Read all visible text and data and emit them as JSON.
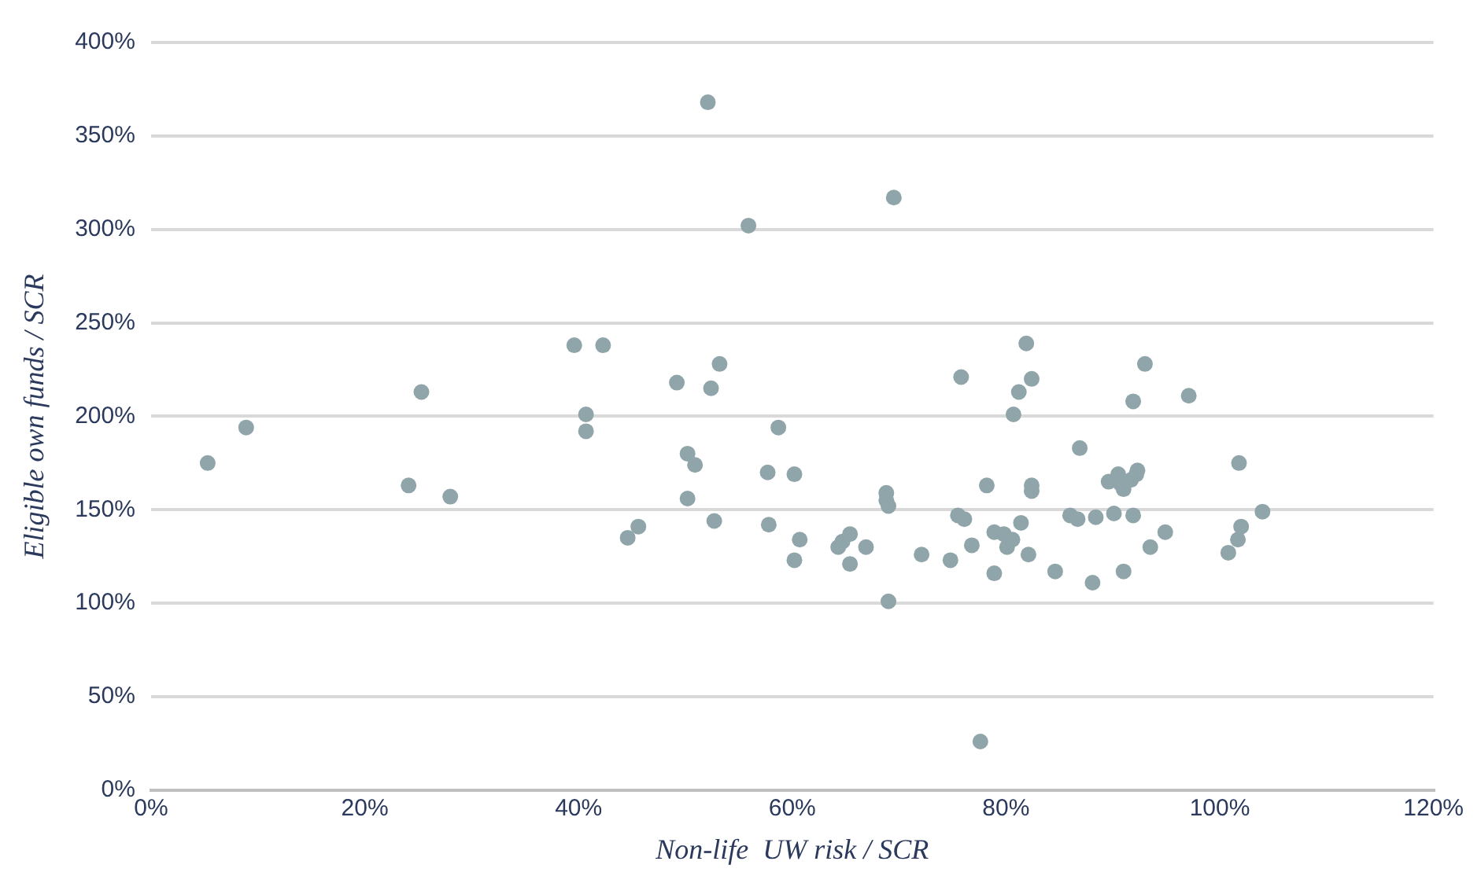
{
  "chart_data": {
    "type": "scatter",
    "xlabel": "Non-life  UW risk / SCR",
    "ylabel": "Eligible own funds / SCR",
    "xlim": [
      0,
      120
    ],
    "xticks": [
      {
        "value": 0,
        "label": "0%"
      },
      {
        "value": 20,
        "label": "20%"
      },
      {
        "value": 40,
        "label": "40%"
      },
      {
        "value": 60,
        "label": "60%"
      },
      {
        "value": 80,
        "label": "80%"
      },
      {
        "value": 100,
        "label": "100%"
      },
      {
        "value": 120,
        "label": "120%"
      }
    ],
    "ylim": [
      0,
      400
    ],
    "yticks": [
      {
        "value": 0,
        "label": "0%"
      },
      {
        "value": 50,
        "label": "50%"
      },
      {
        "value": 100,
        "label": "100%"
      },
      {
        "value": 150,
        "label": "150%"
      },
      {
        "value": 200,
        "label": "200%"
      },
      {
        "value": 250,
        "label": "250%"
      },
      {
        "value": 300,
        "label": "300%"
      },
      {
        "value": 350,
        "label": "350%"
      },
      {
        "value": 400,
        "label": "400%"
      }
    ],
    "grid": "y",
    "marker": "circle",
    "legend": false,
    "series": [
      {
        "color": "#8fa5aa",
        "x": [
          5.3,
          8.9,
          24.1,
          25.3,
          28.0,
          39.6,
          40.7,
          40.7,
          42.3,
          44.6,
          45.6,
          49.2,
          50.2,
          50.2,
          50.9,
          52.1,
          52.4,
          52.7,
          53.2,
          55.9,
          57.7,
          57.8,
          58.7,
          60.2,
          60.2,
          60.7,
          64.3,
          64.7,
          65.4,
          65.4,
          66.9,
          68.8,
          68.8,
          69.0,
          69.0,
          69.5,
          72.1,
          74.8,
          75.5,
          75.8,
          76.1,
          76.8,
          77.6,
          78.2,
          78.9,
          78.9,
          79.8,
          80.1,
          80.6,
          80.7,
          81.2,
          81.4,
          81.9,
          82.1,
          82.4,
          82.4,
          82.4,
          84.6,
          86.0,
          86.7,
          86.9,
          88.1,
          88.4,
          89.6,
          90.1,
          90.5,
          90.7,
          91.0,
          91.0,
          91.7,
          91.9,
          91.9,
          92.2,
          92.3,
          93.0,
          93.5,
          94.9,
          97.1,
          100.8,
          101.7,
          101.8,
          102.0,
          104.0
        ],
        "values": [
          175,
          194,
          163,
          213,
          157,
          238,
          201,
          192,
          238,
          135,
          141,
          218,
          180,
          156,
          174,
          368,
          215,
          144,
          228,
          302,
          170,
          142,
          194,
          169,
          123,
          134,
          130,
          133,
          137,
          121,
          130,
          159,
          155,
          152,
          101,
          317,
          126,
          123,
          147,
          221,
          145,
          131,
          26,
          163,
          138,
          116,
          137,
          130,
          134,
          201,
          213,
          143,
          239,
          126,
          220,
          163,
          160,
          117,
          147,
          145,
          183,
          111,
          146,
          165,
          148,
          169,
          164,
          161,
          117,
          166,
          208,
          147,
          169,
          171,
          228,
          130,
          138,
          211,
          127,
          134,
          175,
          141,
          149
        ]
      }
    ]
  }
}
